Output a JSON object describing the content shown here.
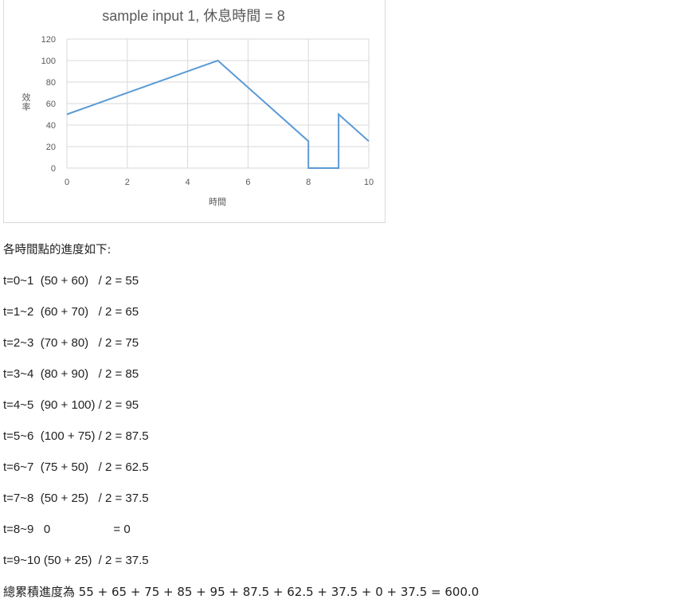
{
  "chart_data": {
    "type": "line",
    "title": "sample input 1, 休息時間 = 8",
    "xlabel": "時間",
    "ylabel": "效率",
    "xlim": [
      0,
      10
    ],
    "ylim": [
      0,
      120
    ],
    "xticks": [
      0,
      2,
      4,
      6,
      8,
      10
    ],
    "yticks": [
      0,
      20,
      40,
      60,
      80,
      100,
      120
    ],
    "grid": true,
    "series": [
      {
        "color": "#5b9bd5",
        "points": [
          [
            0,
            50
          ],
          [
            5,
            100
          ],
          [
            8,
            25
          ],
          [
            8,
            0
          ],
          [
            9,
            0
          ],
          [
            9,
            50
          ],
          [
            10,
            25
          ]
        ]
      }
    ]
  },
  "text": {
    "intro": "各時間點的進度如下:",
    "lines": [
      "t=0~1  (50 + 60)   / 2 = 55",
      "t=1~2  (60 + 70)   / 2 = 65",
      "t=2~3  (70 + 80)   / 2 = 75",
      "t=3~4  (80 + 90)   / 2 = 85",
      "t=4~5  (90 + 100) / 2 = 95",
      "t=5~6  (100 + 75) / 2 = 87.5",
      "t=6~7  (75 + 50)   / 2 = 62.5",
      "t=7~8  (50 + 25)   / 2 = 37.5",
      "t=8~9   0                   = 0",
      "t=9~10 (50 + 25)  / 2 = 37.5"
    ],
    "total": "總累積進度為 55 + 65 + 75 + 85 + 95 + 87.5 + 62.5 + 37.5 + 0 + 37.5 = 600.0"
  }
}
